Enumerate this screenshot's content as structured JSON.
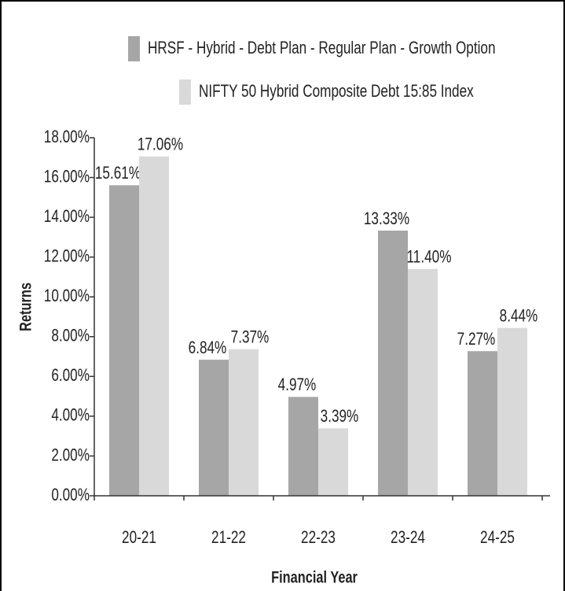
{
  "chart_data": {
    "type": "bar",
    "categories": [
      "20-21",
      "21-22",
      "22-23",
      "23-24",
      "24-25"
    ],
    "series": [
      {
        "name": "HRSF - Hybrid - Debt Plan - Regular Plan - Growth Option",
        "color": "#a6a6a6",
        "values": [
          15.61,
          6.84,
          4.97,
          13.33,
          7.27
        ],
        "value_labels": [
          "15.61%",
          "6.84%",
          "4.97%",
          "13.33%",
          "7.27%"
        ]
      },
      {
        "name": "NIFTY 50 Hybrid Composite Debt 15:85 Index",
        "color": "#d9d9d9",
        "values": [
          17.06,
          7.37,
          3.39,
          11.4,
          8.44
        ],
        "value_labels": [
          "17.06%",
          "7.37%",
          "3.39%",
          "11.40%",
          "8.44%"
        ]
      }
    ],
    "xlabel": "Financial Year",
    "ylabel": "Returns",
    "ylim": [
      0,
      18
    ],
    "yticks": [
      {
        "value": 0,
        "label": "0.00%"
      },
      {
        "value": 2,
        "label": "2.00%"
      },
      {
        "value": 4,
        "label": "4.00%"
      },
      {
        "value": 6,
        "label": "6.00%"
      },
      {
        "value": 8,
        "label": "8.00%"
      },
      {
        "value": 10,
        "label": "10.00%"
      },
      {
        "value": 12,
        "label": "12.00%"
      },
      {
        "value": 14,
        "label": "14.00%"
      },
      {
        "value": 16,
        "label": "16.00%"
      },
      {
        "value": 18,
        "label": "18.00%"
      }
    ],
    "grid": false
  }
}
